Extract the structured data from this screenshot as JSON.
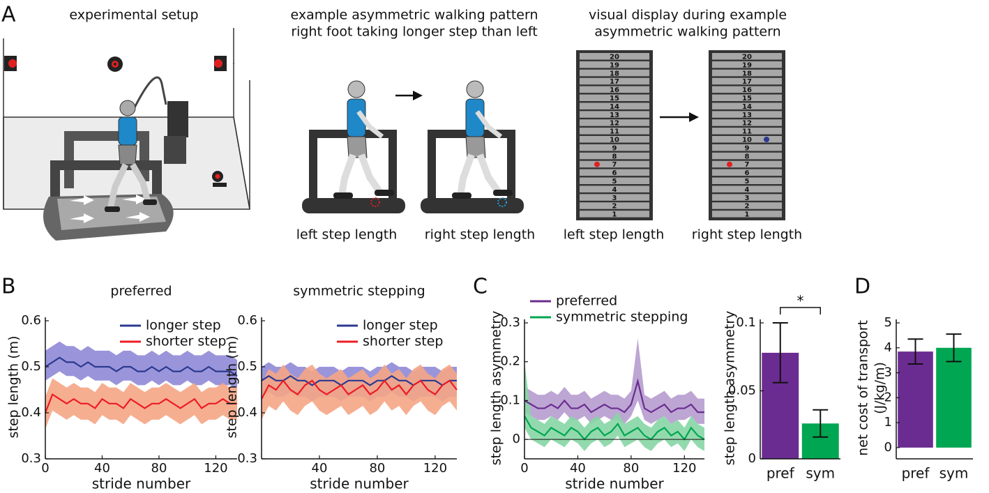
{
  "panel_labels": {
    "a": "A",
    "b": "B",
    "c": "C",
    "d": "D"
  },
  "panel_a": {
    "setup_title": "experimental setup",
    "walk_title": [
      "example asymmetric walking pattern",
      "right foot taking longer step than left"
    ],
    "walk_labels": [
      "left step length",
      "right step length"
    ],
    "display_title": [
      "visual display during example",
      "asymmetric walking pattern"
    ],
    "display_labels": [
      "left step length",
      "right step length"
    ],
    "ladder": {
      "rungs": [
        20,
        19,
        18,
        17,
        16,
        15,
        14,
        13,
        12,
        11,
        10,
        9,
        8,
        7,
        6,
        5,
        4,
        3,
        2,
        1
      ],
      "left_step": 7,
      "right_step": 10
    }
  },
  "chart_data": [
    {
      "type": "line",
      "title": "preferred",
      "xlabel": "stride number",
      "ylabel": "step length (m)",
      "x": [
        0,
        5,
        10,
        15,
        20,
        25,
        30,
        35,
        40,
        45,
        50,
        55,
        60,
        65,
        70,
        75,
        80,
        85,
        90,
        95,
        100,
        105,
        110,
        115,
        120,
        125,
        130,
        135
      ],
      "xlim": [
        0,
        135
      ],
      "xticks": [
        0,
        40,
        80,
        120
      ],
      "ylim": [
        0.3,
        0.6
      ],
      "yticks": [
        0.3,
        0.4,
        0.5,
        0.6
      ],
      "legend": "upper right",
      "series": [
        {
          "name": "longer step",
          "color": "#2b3990",
          "band_color": "#8f8ad6",
          "values": [
            0.5,
            0.51,
            0.52,
            0.51,
            0.51,
            0.5,
            0.51,
            0.5,
            0.5,
            0.5,
            0.49,
            0.5,
            0.5,
            0.49,
            0.49,
            0.5,
            0.49,
            0.5,
            0.49,
            0.49,
            0.5,
            0.49,
            0.49,
            0.5,
            0.49,
            0.49,
            0.49,
            0.48
          ],
          "upper": [
            0.535,
            0.545,
            0.555,
            0.545,
            0.545,
            0.535,
            0.545,
            0.535,
            0.535,
            0.535,
            0.525,
            0.535,
            0.535,
            0.525,
            0.525,
            0.535,
            0.525,
            0.535,
            0.525,
            0.525,
            0.535,
            0.525,
            0.525,
            0.535,
            0.525,
            0.525,
            0.525,
            0.515
          ],
          "lower": [
            0.47,
            0.48,
            0.49,
            0.48,
            0.48,
            0.47,
            0.48,
            0.47,
            0.47,
            0.47,
            0.46,
            0.47,
            0.47,
            0.46,
            0.46,
            0.47,
            0.46,
            0.47,
            0.46,
            0.46,
            0.47,
            0.46,
            0.46,
            0.47,
            0.46,
            0.46,
            0.46,
            0.45
          ]
        },
        {
          "name": "shorter step",
          "color": "#ed1c24",
          "band_color": "#f5a585",
          "values": [
            0.4,
            0.44,
            0.43,
            0.42,
            0.43,
            0.42,
            0.42,
            0.41,
            0.43,
            0.42,
            0.42,
            0.41,
            0.43,
            0.42,
            0.41,
            0.42,
            0.42,
            0.43,
            0.42,
            0.41,
            0.42,
            0.43,
            0.41,
            0.42,
            0.42,
            0.43,
            0.42,
            0.42
          ],
          "upper": [
            0.435,
            0.475,
            0.465,
            0.455,
            0.465,
            0.455,
            0.455,
            0.445,
            0.465,
            0.455,
            0.455,
            0.445,
            0.465,
            0.455,
            0.445,
            0.455,
            0.455,
            0.465,
            0.455,
            0.445,
            0.455,
            0.465,
            0.445,
            0.455,
            0.455,
            0.465,
            0.455,
            0.455
          ],
          "lower": [
            0.365,
            0.405,
            0.395,
            0.385,
            0.395,
            0.385,
            0.385,
            0.375,
            0.395,
            0.385,
            0.385,
            0.375,
            0.395,
            0.385,
            0.375,
            0.385,
            0.385,
            0.395,
            0.385,
            0.375,
            0.385,
            0.395,
            0.375,
            0.385,
            0.385,
            0.395,
            0.385,
            0.385
          ]
        }
      ]
    },
    {
      "type": "line",
      "title": "symmetric stepping",
      "xlabel": "stride number",
      "ylabel": "step length (m)",
      "x": [
        0,
        5,
        10,
        15,
        20,
        25,
        30,
        35,
        40,
        45,
        50,
        55,
        60,
        65,
        70,
        75,
        80,
        85,
        90,
        95,
        100,
        105,
        110,
        115,
        120,
        125,
        130,
        135
      ],
      "xlim": [
        0,
        135
      ],
      "xticks": [
        40,
        80,
        120
      ],
      "ylim": [
        0.3,
        0.6
      ],
      "yticks": [
        0.3,
        0.4,
        0.5,
        0.6
      ],
      "legend": "upper right",
      "series": [
        {
          "name": "longer step",
          "color": "#2b3990",
          "band_color": "#8f8ad6",
          "values": [
            0.47,
            0.48,
            0.47,
            0.47,
            0.48,
            0.47,
            0.47,
            0.46,
            0.47,
            0.47,
            0.47,
            0.46,
            0.47,
            0.47,
            0.47,
            0.46,
            0.47,
            0.47,
            0.48,
            0.47,
            0.47,
            0.46,
            0.47,
            0.47,
            0.47,
            0.46,
            0.47,
            0.47
          ],
          "upper": [
            0.5,
            0.51,
            0.5,
            0.5,
            0.51,
            0.5,
            0.5,
            0.49,
            0.5,
            0.5,
            0.5,
            0.49,
            0.5,
            0.5,
            0.5,
            0.49,
            0.5,
            0.5,
            0.51,
            0.5,
            0.5,
            0.49,
            0.5,
            0.5,
            0.5,
            0.49,
            0.5,
            0.5
          ],
          "lower": [
            0.435,
            0.445,
            0.435,
            0.435,
            0.445,
            0.435,
            0.435,
            0.425,
            0.435,
            0.435,
            0.435,
            0.425,
            0.435,
            0.435,
            0.435,
            0.425,
            0.435,
            0.435,
            0.445,
            0.435,
            0.435,
            0.425,
            0.435,
            0.435,
            0.435,
            0.425,
            0.435,
            0.435
          ]
        },
        {
          "name": "shorter step",
          "color": "#ed1c24",
          "band_color": "#f5a585",
          "values": [
            0.43,
            0.46,
            0.45,
            0.47,
            0.45,
            0.44,
            0.46,
            0.47,
            0.45,
            0.44,
            0.45,
            0.46,
            0.44,
            0.45,
            0.46,
            0.44,
            0.45,
            0.47,
            0.45,
            0.46,
            0.44,
            0.46,
            0.47,
            0.45,
            0.44,
            0.46,
            0.47,
            0.45
          ],
          "upper": [
            0.465,
            0.495,
            0.485,
            0.505,
            0.485,
            0.475,
            0.495,
            0.505,
            0.485,
            0.475,
            0.485,
            0.495,
            0.475,
            0.485,
            0.495,
            0.475,
            0.485,
            0.505,
            0.485,
            0.495,
            0.475,
            0.495,
            0.505,
            0.485,
            0.475,
            0.495,
            0.505,
            0.485
          ],
          "lower": [
            0.385,
            0.415,
            0.405,
            0.425,
            0.405,
            0.395,
            0.415,
            0.425,
            0.405,
            0.395,
            0.405,
            0.415,
            0.395,
            0.405,
            0.415,
            0.395,
            0.405,
            0.425,
            0.405,
            0.415,
            0.395,
            0.415,
            0.425,
            0.405,
            0.395,
            0.415,
            0.425,
            0.405
          ]
        }
      ]
    },
    {
      "type": "line",
      "xlabel": "stride number",
      "ylabel": "step length asymmetry",
      "x": [
        0,
        5,
        10,
        15,
        20,
        25,
        30,
        35,
        40,
        45,
        50,
        55,
        60,
        65,
        70,
        75,
        80,
        85,
        90,
        95,
        100,
        105,
        110,
        115,
        120,
        125,
        130,
        135
      ],
      "xlim": [
        0,
        135
      ],
      "xticks": [
        0,
        40,
        80,
        120
      ],
      "ylim": [
        -0.05,
        0.3
      ],
      "yticks": [
        0,
        0.1,
        0.2,
        0.3
      ],
      "legend": "upper left",
      "zero_line": true,
      "series": [
        {
          "name": "preferred",
          "color": "#6b2c91",
          "band_color": "#b69cce",
          "values": [
            0.1,
            0.09,
            0.08,
            0.08,
            0.09,
            0.08,
            0.1,
            0.08,
            0.08,
            0.09,
            0.07,
            0.08,
            0.09,
            0.08,
            0.08,
            0.07,
            0.09,
            0.15,
            0.08,
            0.07,
            0.08,
            0.09,
            0.07,
            0.08,
            0.08,
            0.09,
            0.07,
            0.07
          ],
          "upper": [
            0.135,
            0.125,
            0.115,
            0.115,
            0.125,
            0.115,
            0.135,
            0.115,
            0.115,
            0.125,
            0.105,
            0.115,
            0.125,
            0.115,
            0.115,
            0.105,
            0.125,
            0.26,
            0.115,
            0.105,
            0.115,
            0.125,
            0.105,
            0.115,
            0.115,
            0.125,
            0.105,
            0.105
          ],
          "lower": [
            0.07,
            0.06,
            0.05,
            0.05,
            0.06,
            0.05,
            0.07,
            0.05,
            0.05,
            0.06,
            0.04,
            0.05,
            0.06,
            0.05,
            0.05,
            0.04,
            0.06,
            0.1,
            0.05,
            0.04,
            0.05,
            0.06,
            0.04,
            0.05,
            0.05,
            0.06,
            0.04,
            0.04
          ]
        },
        {
          "name": "symmetric stepping",
          "color": "#00a651",
          "band_color": "#86d6a4",
          "values": [
            0.06,
            0.03,
            0.02,
            0.01,
            0.03,
            0.02,
            0.01,
            0.03,
            0.02,
            0.0,
            0.02,
            0.03,
            0.01,
            0.02,
            0.04,
            0.01,
            0.02,
            0.03,
            0.01,
            0.0,
            0.02,
            0.03,
            0.01,
            0.02,
            0.0,
            0.03,
            0.01,
            0.0
          ],
          "upper": [
            0.2,
            0.06,
            0.05,
            0.04,
            0.06,
            0.05,
            0.04,
            0.06,
            0.05,
            0.03,
            0.05,
            0.06,
            0.04,
            0.05,
            0.07,
            0.04,
            0.05,
            0.06,
            0.04,
            0.03,
            0.05,
            0.06,
            0.04,
            0.05,
            0.03,
            0.06,
            0.04,
            0.03
          ],
          "lower": [
            0.03,
            0.0,
            -0.01,
            -0.02,
            0.0,
            -0.01,
            -0.02,
            0.0,
            -0.01,
            -0.03,
            -0.01,
            0.0,
            -0.02,
            -0.01,
            0.01,
            -0.02,
            -0.01,
            0.0,
            -0.02,
            -0.03,
            -0.01,
            0.0,
            -0.02,
            -0.01,
            -0.03,
            0.0,
            -0.02,
            -0.03
          ]
        }
      ]
    },
    {
      "type": "bar",
      "ylabel": "step length asymmetry",
      "categories": [
        "pref",
        "sym"
      ],
      "values": [
        0.078,
        0.026
      ],
      "errors": [
        0.022,
        0.01
      ],
      "colors": [
        "#6b2c91",
        "#00a651"
      ],
      "ylim": [
        0,
        0.1
      ],
      "yticks": [
        0,
        0.05,
        0.1
      ],
      "significance": "*"
    },
    {
      "type": "bar",
      "ylabel": [
        "net cost of transport",
        "(J/kg/m)"
      ],
      "categories": [
        "pref",
        "sym"
      ],
      "values": [
        3.85,
        4.0
      ],
      "errors": [
        0.5,
        0.55
      ],
      "colors": [
        "#6b2c91",
        "#00a651"
      ],
      "ylim": [
        -0.45,
        5
      ],
      "yticks": [
        0,
        1,
        2,
        3,
        4,
        5
      ]
    }
  ]
}
